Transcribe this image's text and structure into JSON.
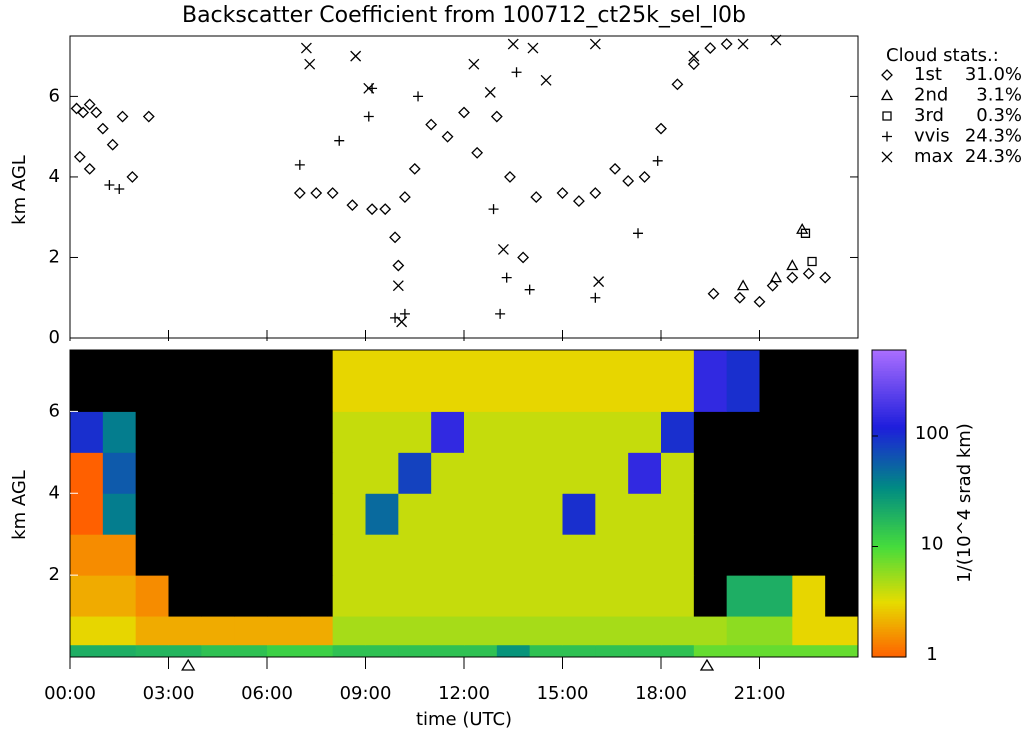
{
  "chart_data": [
    {
      "type": "scatter",
      "title": "Backscatter Coefficient from 100712_ct25k_sel_l0b",
      "ylabel": "km AGL",
      "xlim": [
        0,
        24
      ],
      "ylim": [
        0,
        7.5
      ],
      "yticks": [
        0,
        2,
        4,
        6
      ],
      "legend_title": "Cloud stats.:",
      "series": [
        {
          "name": "1st",
          "marker": "diamond",
          "color": "#000000",
          "legend_label": "31.0%",
          "x": [
            0.2,
            0.4,
            0.6,
            0.8,
            0.3,
            0.6,
            1.0,
            1.3,
            1.6,
            1.9,
            2.4,
            7.0,
            7.5,
            8.0,
            8.6,
            9.2,
            9.6,
            9.9,
            10.0,
            10.2,
            10.5,
            11.0,
            11.5,
            12.0,
            12.4,
            13.0,
            13.4,
            13.8,
            14.2,
            15.0,
            15.5,
            16.0,
            16.6,
            17.0,
            17.5,
            18.0,
            18.5,
            19.0,
            19.5,
            20.0,
            19.6,
            20.4,
            21.0,
            21.4,
            22.0,
            22.5,
            23.0
          ],
          "values": [
            5.7,
            5.6,
            5.8,
            5.6,
            4.5,
            4.2,
            5.2,
            4.8,
            5.5,
            4.0,
            5.5,
            3.6,
            3.6,
            3.6,
            3.3,
            3.2,
            3.2,
            2.5,
            1.8,
            3.5,
            4.2,
            5.3,
            5.0,
            5.6,
            4.6,
            5.5,
            4.0,
            2.0,
            3.5,
            3.6,
            3.4,
            3.6,
            4.2,
            3.9,
            4.0,
            5.2,
            6.3,
            6.8,
            7.2,
            7.3,
            1.1,
            1.0,
            0.9,
            1.3,
            1.5,
            1.6,
            1.5
          ]
        },
        {
          "name": "2nd",
          "marker": "triangle",
          "color": "#000000",
          "legend_label": "3.1%",
          "x": [
            20.5,
            21.5,
            22.0,
            22.3
          ],
          "values": [
            1.3,
            1.5,
            1.8,
            2.7
          ]
        },
        {
          "name": "3rd",
          "marker": "square",
          "color": "#000000",
          "legend_label": "0.3%",
          "x": [
            22.4,
            22.6
          ],
          "values": [
            2.6,
            1.9
          ]
        },
        {
          "name": "vvis",
          "marker": "plus",
          "color": "#000000",
          "legend_label": "24.3%",
          "x": [
            1.2,
            1.5,
            7.0,
            8.2,
            9.1,
            9.9,
            10.2,
            9.2,
            10.6,
            12.9,
            13.1,
            13.3,
            13.6,
            14.0,
            16.0,
            17.3,
            17.9
          ],
          "values": [
            3.8,
            3.7,
            4.3,
            4.9,
            5.5,
            0.5,
            0.6,
            6.2,
            6.0,
            3.2,
            0.6,
            1.5,
            6.6,
            1.2,
            1.0,
            2.6,
            4.4
          ]
        },
        {
          "name": "max",
          "marker": "cross",
          "color": "#000000",
          "legend_label": "24.3%",
          "x": [
            7.2,
            7.3,
            8.7,
            9.1,
            10.0,
            10.1,
            12.3,
            12.8,
            13.5,
            14.1,
            14.5,
            16.0,
            19.0,
            20.5,
            21.5,
            13.2,
            16.1
          ],
          "values": [
            7.2,
            6.8,
            7.0,
            6.2,
            1.3,
            0.4,
            6.8,
            6.1,
            7.3,
            7.2,
            6.4,
            7.3,
            7.0,
            7.3,
            7.4,
            2.2,
            1.4
          ]
        }
      ]
    },
    {
      "type": "heatmap",
      "ylabel": "km AGL",
      "xlabel": "time (UTC)",
      "xlim": [
        0,
        24
      ],
      "ylim": [
        0,
        7.5
      ],
      "xticks": [
        {
          "value": 0,
          "label": "00:00"
        },
        {
          "value": 3,
          "label": "03:00"
        },
        {
          "value": 6,
          "label": "06:00"
        },
        {
          "value": 9,
          "label": "09:00"
        },
        {
          "value": 12,
          "label": "12:00"
        },
        {
          "value": 15,
          "label": "15:00"
        },
        {
          "value": 18,
          "label": "18:00"
        },
        {
          "value": 21,
          "label": "21:00"
        }
      ],
      "yticks": [
        2,
        4,
        6
      ],
      "x_bins": [
        0,
        1,
        2,
        3,
        4,
        5,
        6,
        7,
        8,
        9,
        10,
        11,
        12,
        13,
        14,
        15,
        16,
        17,
        18,
        19,
        20,
        21,
        22,
        23,
        24
      ],
      "y_bins": [
        0,
        0.3,
        1,
        2,
        3,
        4,
        5,
        6,
        7.5
      ],
      "z": [
        [
          20,
          20,
          18,
          18,
          15,
          15,
          12,
          12,
          15,
          15,
          15,
          15,
          15,
          30,
          15,
          15,
          15,
          15,
          15,
          8,
          8,
          8,
          8,
          8
        ],
        [
          3,
          3,
          2,
          2,
          2,
          2,
          2,
          2,
          5,
          5,
          5,
          5,
          5,
          5,
          5,
          5,
          5,
          5,
          5,
          5,
          6,
          6,
          3,
          3
        ],
        [
          2,
          2,
          1.5,
          0,
          0,
          0,
          0,
          0,
          4,
          4,
          4,
          4,
          4,
          4,
          4,
          4,
          4,
          4,
          4,
          0,
          20,
          20,
          3,
          0
        ],
        [
          1.5,
          1.5,
          0,
          0,
          0,
          0,
          0,
          0,
          4,
          4,
          4,
          4,
          4,
          4,
          4,
          4,
          4,
          4,
          4,
          0,
          0,
          0,
          0,
          0
        ],
        [
          1,
          40,
          0,
          0,
          0,
          0,
          0,
          0,
          4,
          50,
          4,
          4,
          4,
          4,
          4,
          100,
          4,
          4,
          4,
          0,
          0,
          0,
          0,
          0
        ],
        [
          1,
          60,
          0,
          0,
          0,
          0,
          0,
          0,
          4,
          4,
          80,
          4,
          4,
          4,
          4,
          4,
          4,
          150,
          4,
          0,
          0,
          0,
          0,
          0
        ],
        [
          100,
          40,
          0,
          0,
          0,
          0,
          0,
          0,
          4,
          4,
          4,
          150,
          4,
          4,
          4,
          4,
          4,
          4,
          100,
          0,
          0,
          0,
          0,
          0
        ],
        [
          0,
          0,
          0,
          0,
          0,
          0,
          0,
          0,
          3,
          3,
          3,
          3,
          3,
          3,
          3,
          3,
          3,
          3,
          3,
          150,
          100,
          0,
          0,
          0
        ]
      ],
      "triangle_markers": [
        3.6,
        19.4
      ],
      "colorbar_label": "1/(10^4 srad km)",
      "clim": [
        1,
        600
      ],
      "log_scale": true,
      "cticks": [
        1,
        10,
        100
      ]
    }
  ]
}
